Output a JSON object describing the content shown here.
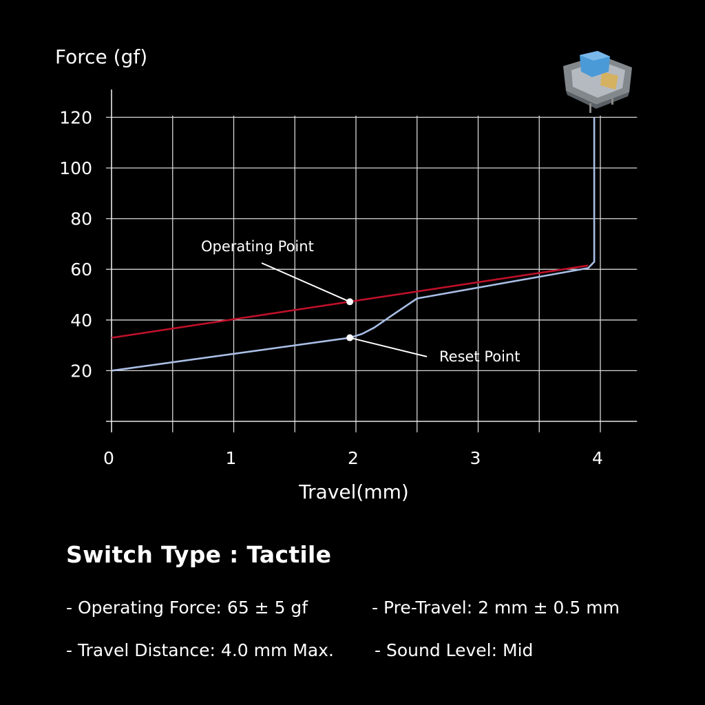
{
  "chart_data": {
    "type": "line",
    "ylabel": "Force (gf)",
    "xlabel": "Travel(mm)",
    "x_ticks": [
      "0",
      "1",
      "2",
      "3",
      "4"
    ],
    "y_ticks": [
      "20",
      "40",
      "60",
      "80",
      "100",
      "120"
    ],
    "xlim": [
      0,
      4.3
    ],
    "ylim": [
      0,
      120
    ],
    "grid": true,
    "colors": {
      "actuation": "#c0102a",
      "force_curve": "#a9bfe6"
    },
    "series": [
      {
        "key": "actuation",
        "x": [
          0,
          3.9
        ],
        "y": [
          33,
          61.5
        ]
      },
      {
        "key": "force_curve",
        "x": [
          0,
          1.95,
          2.05,
          2.15,
          2.3,
          2.5,
          3.9,
          3.95,
          3.95
        ],
        "y": [
          20,
          33,
          34.5,
          37,
          42,
          48.5,
          60.5,
          63,
          120
        ]
      }
    ],
    "annotations": [
      {
        "label": "Operating Point",
        "x": 1.95,
        "y": 47.2
      },
      {
        "label": "Reset Point",
        "x": 1.95,
        "y": 33
      }
    ]
  },
  "specs": {
    "title": "Switch Type : Tactile",
    "rows": [
      [
        "- Operating Force: 65 ± 5 gf",
        "- Pre-Travel: 2 mm ± 0.5 mm"
      ],
      [
        "- Travel Distance: 4.0 mm Max.",
        "- Sound Level: Mid"
      ]
    ]
  },
  "product_image": {
    "icon": "keyboard-switch-icon",
    "stem_color": "#4a9ad8"
  }
}
